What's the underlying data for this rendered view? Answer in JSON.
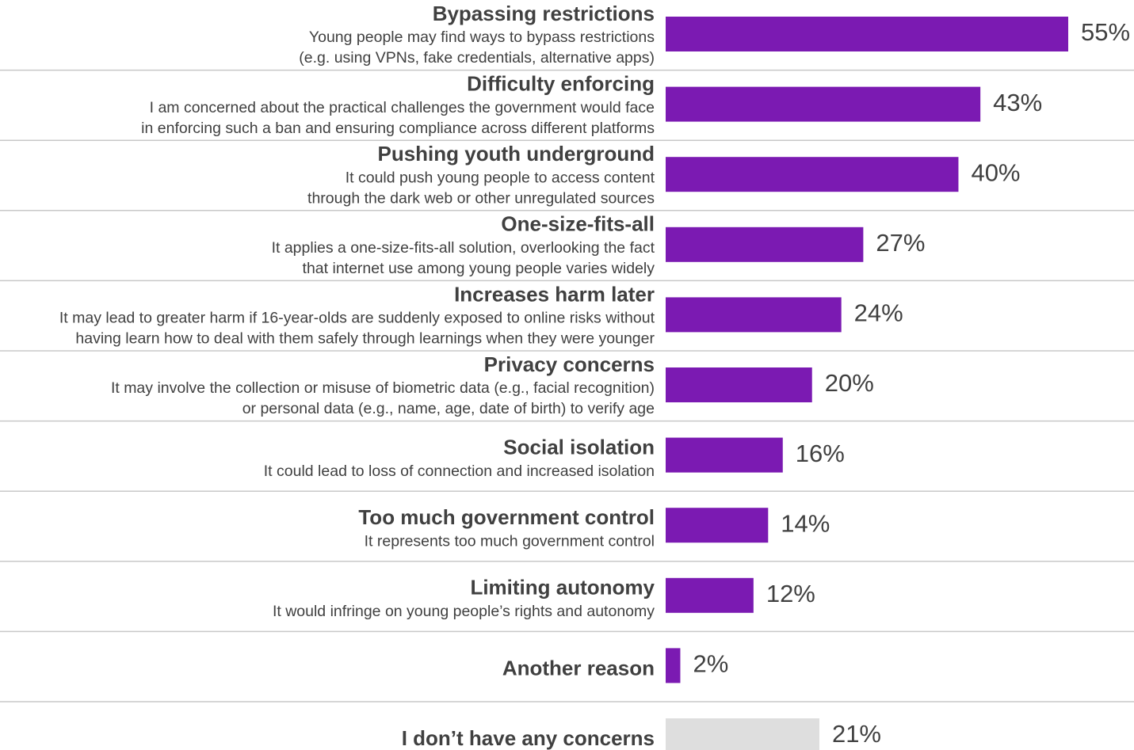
{
  "chart_data": {
    "type": "bar",
    "orientation": "horizontal",
    "categories": [
      "Bypassing restrictions",
      "Difficulty enforcing",
      "Pushing youth underground",
      "One-size-fits-all",
      "Increases harm later",
      "Privacy concerns",
      "Social isolation",
      "Too much government control",
      "Limiting autonomy",
      "Another reason",
      "I don’t have any concerns"
    ],
    "descriptions": [
      [
        "Young people may find ways to bypass restrictions",
        "(e.g. using VPNs, fake credentials, alternative apps)"
      ],
      [
        "I am concerned about the practical challenges the government would face",
        "in enforcing such a ban and ensuring compliance across different platforms"
      ],
      [
        "It could push young people to access content",
        "through the dark web or other unregulated sources"
      ],
      [
        "It applies a one-size-fits-all solution, overlooking the fact",
        "that internet use among young people varies widely"
      ],
      [
        "It may lead to greater harm if 16-year-olds are suddenly exposed to online risks without",
        "having learn how to deal with them safely through learnings when they were younger"
      ],
      [
        "It may involve the collection or misuse of biometric data (e.g., facial recognition)",
        "or personal data (e.g., name, age, date of birth) to verify age"
      ],
      [
        "It could lead to loss of connection and increased isolation"
      ],
      [
        "It represents too much government control"
      ],
      [
        "It would infringe on young people’s rights and autonomy"
      ],
      null,
      null
    ],
    "values": [
      55,
      43,
      40,
      27,
      24,
      20,
      16,
      14,
      12,
      2,
      21
    ],
    "value_labels": [
      "55%",
      "43%",
      "40%",
      "27%",
      "24%",
      "20%",
      "16%",
      "14%",
      "12%",
      "2%",
      "21%"
    ],
    "colors": [
      "#7b1ab2",
      "#7b1ab2",
      "#7b1ab2",
      "#7b1ab2",
      "#7b1ab2",
      "#7b1ab2",
      "#7b1ab2",
      "#7b1ab2",
      "#7b1ab2",
      "#7b1ab2",
      "#dedede"
    ]
  }
}
